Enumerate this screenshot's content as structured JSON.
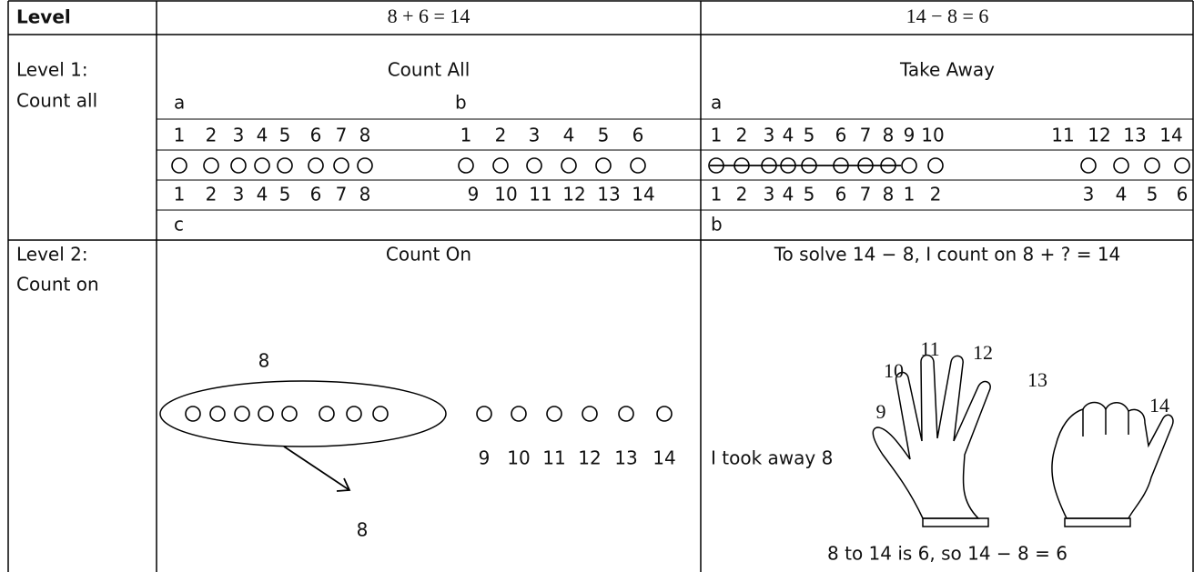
{
  "header": {
    "level": "Level",
    "addition": "8 + 6 = 14",
    "subtraction": "14 − 8 = 6"
  },
  "rows": [
    {
      "level": [
        "Level 1:",
        "Count all"
      ],
      "count_all": {
        "title": "Count All",
        "label_a": "a",
        "label_b": "b",
        "label_c": "c",
        "top_a": [
          1,
          2,
          3,
          4,
          5,
          6,
          7,
          8
        ],
        "top_b": [
          1,
          2,
          3,
          4,
          5,
          6
        ],
        "bottom_a": [
          1,
          2,
          3,
          4,
          5,
          6,
          7,
          8
        ],
        "bottom_b": [
          9,
          10,
          11,
          12,
          13,
          14
        ]
      },
      "take_away": {
        "title": "Take Away",
        "label_a": "a",
        "label_b": "b",
        "top": [
          1,
          2,
          3,
          4,
          5,
          6,
          7,
          8,
          9,
          10
        ],
        "top_extra": [
          11,
          12,
          13,
          14
        ],
        "bottom": [
          1,
          2,
          3,
          4,
          5,
          6,
          7,
          8,
          1,
          2
        ],
        "bottom_extra": [
          3,
          4,
          5,
          6
        ]
      }
    },
    {
      "level": [
        "Level 2:",
        "Count on"
      ],
      "count_on": {
        "title": "Count On",
        "group_label": "8",
        "numbers": [
          9,
          10,
          11,
          12,
          13,
          14
        ],
        "result_label": "8"
      },
      "explanation": {
        "title": "To solve 14 − 8, I count on 8 + ? = 14",
        "finger_labels": [
          9,
          10,
          11,
          12,
          13,
          14
        ],
        "took_away": "I took away 8",
        "conclusion": "8 to 14 is 6, so 14 − 8 = 6"
      }
    }
  ]
}
